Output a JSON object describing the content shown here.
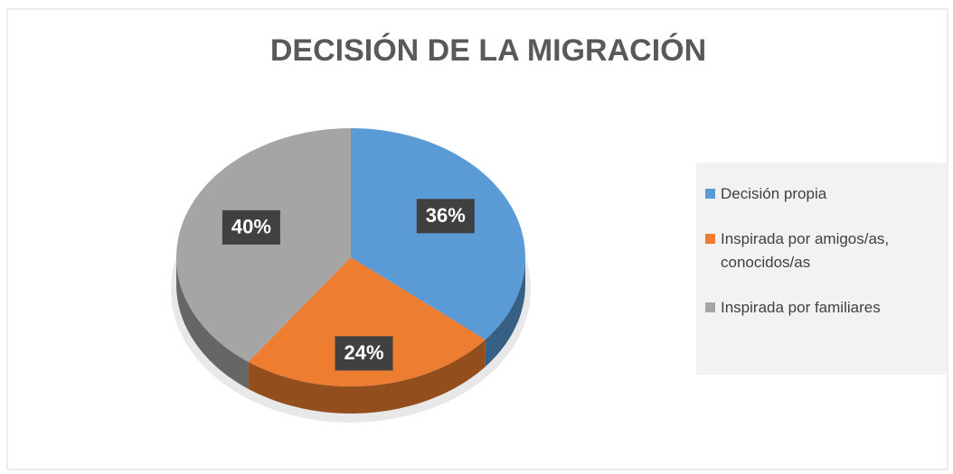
{
  "chart_data": {
    "type": "pie",
    "title": "DECISIÓN DE LA MIGRACIÓN",
    "categories": [
      "Decisión propia",
      "Inspirada por amigos/as, conocidos/as",
      "Inspirada por familiares"
    ],
    "values": [
      36,
      24,
      40
    ],
    "value_labels": [
      "36%",
      "24%",
      "40%"
    ],
    "colors": [
      "#5b9bd5",
      "#ed7d31",
      "#a5a5a5"
    ],
    "legend": "right"
  }
}
